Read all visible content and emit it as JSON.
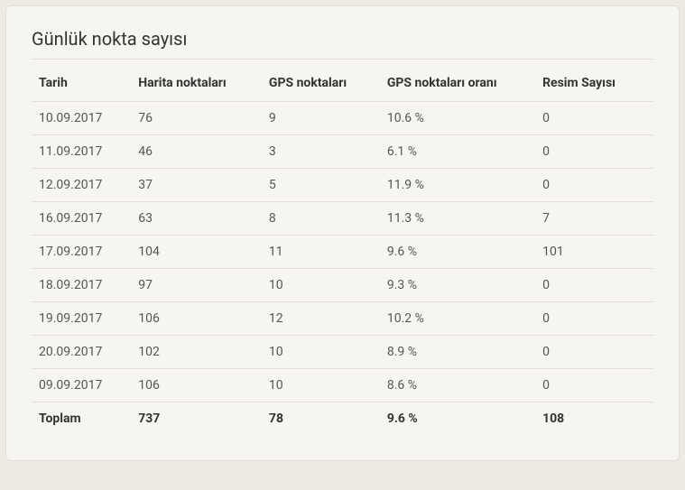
{
  "card": {
    "title": "Günlük nokta sayısı"
  },
  "table": {
    "columns": [
      "Tarih",
      "Harita noktaları",
      "GPS noktaları",
      "GPS noktaları oranı",
      "Resim Sayısı"
    ],
    "rows": [
      [
        "10.09.2017",
        "76",
        "9",
        "10.6 %",
        "0"
      ],
      [
        "11.09.2017",
        "46",
        "3",
        "6.1 %",
        "0"
      ],
      [
        "12.09.2017",
        "37",
        "5",
        "11.9 %",
        "0"
      ],
      [
        "16.09.2017",
        "63",
        "8",
        "11.3 %",
        "7"
      ],
      [
        "17.09.2017",
        "104",
        "11",
        "9.6 %",
        "101"
      ],
      [
        "18.09.2017",
        "97",
        "10",
        "9.3 %",
        "0"
      ],
      [
        "19.09.2017",
        "106",
        "12",
        "10.2 %",
        "0"
      ],
      [
        "20.09.2017",
        "102",
        "10",
        "8.9 %",
        "0"
      ],
      [
        "09.09.2017",
        "106",
        "10",
        "8.6 %",
        "0"
      ]
    ],
    "total": [
      "Toplam",
      "737",
      "78",
      "9.6 %",
      "108"
    ]
  },
  "style": {
    "background_color": "#eceae3",
    "card_background": "#f7f5f0",
    "border_color": "#e0ded6",
    "title_fontsize": 20,
    "header_fontsize": 14,
    "cell_fontsize": 14,
    "header_color": "#333333",
    "cell_color": "#555555",
    "column_widths_percent": [
      16,
      21,
      19,
      25,
      19
    ]
  }
}
